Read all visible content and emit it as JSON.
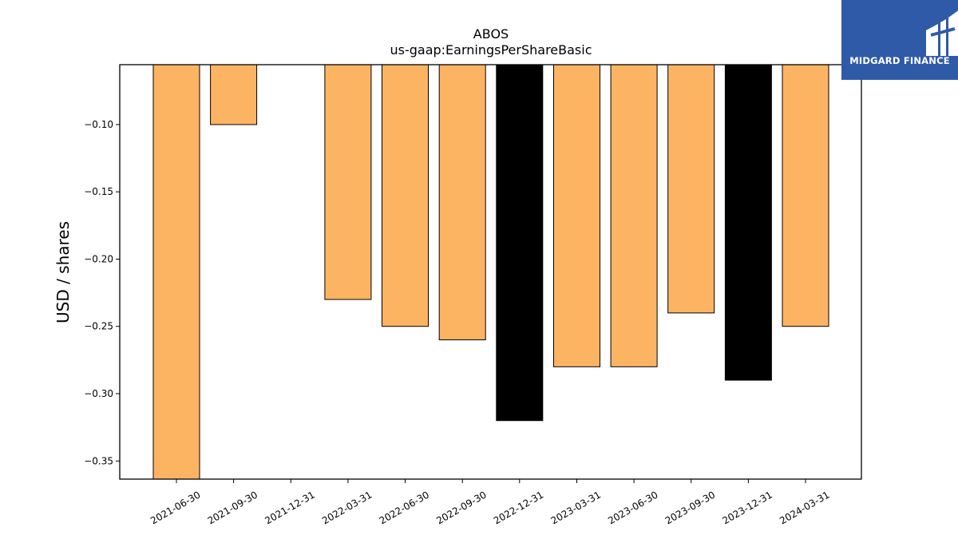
{
  "chart_data": {
    "type": "bar",
    "title": "ABOS",
    "subtitle": "us-gaap:EarningsPerShareBasic",
    "xlabel": "",
    "ylabel": "USD / shares",
    "categories": [
      "2021-06-30",
      "2021-09-30",
      "2021-12-31",
      "2022-03-31",
      "2022-06-30",
      "2022-09-30",
      "2022-12-31",
      "2023-03-31",
      "2023-06-30",
      "2023-09-30",
      "2023-12-31",
      "2024-03-31"
    ],
    "values": [
      -0.37,
      -0.1,
      null,
      -0.23,
      -0.25,
      -0.26,
      -0.32,
      -0.28,
      -0.28,
      -0.24,
      -0.29,
      -0.25
    ],
    "bar_colors": [
      "#fdb462",
      "#fdb462",
      "#fdb462",
      "#fdb462",
      "#fdb462",
      "#fdb462",
      "#000000",
      "#fdb462",
      "#fdb462",
      "#fdb462",
      "#000000",
      "#fdb462"
    ],
    "ylim": [
      -0.3635,
      -0.0555
    ],
    "yticks": [
      -0.1,
      -0.15,
      -0.2,
      -0.25,
      -0.3,
      -0.35
    ],
    "ytick_labels": [
      "−0.10",
      "−0.15",
      "−0.20",
      "−0.25",
      "−0.30",
      "−0.35"
    ],
    "grid": false,
    "legend": "none"
  },
  "logo": {
    "text": "MIDGARD FINANCE",
    "background": "#2e5aa8"
  }
}
